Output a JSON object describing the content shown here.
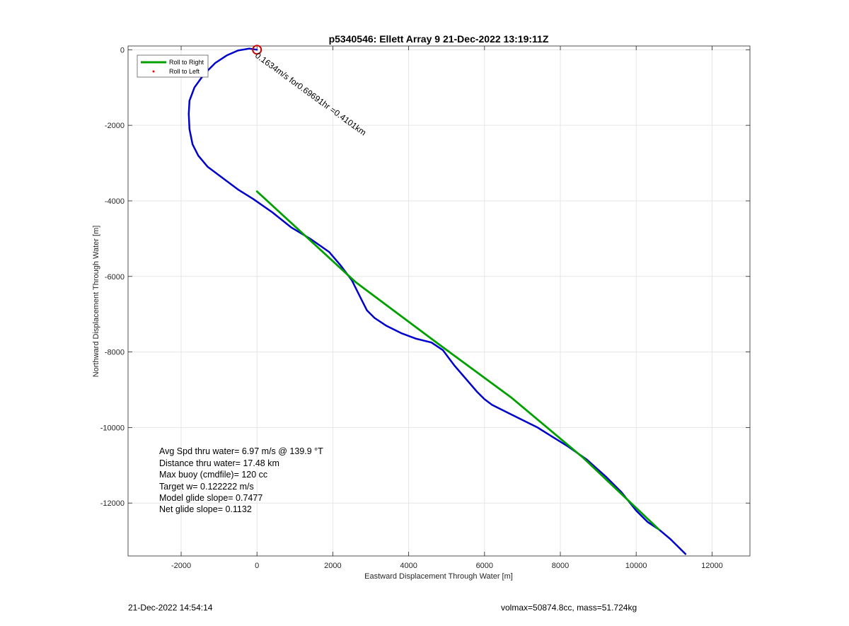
{
  "chart_data": {
    "type": "line",
    "title": "p5340546: Ellett Array 9 21-Dec-2022 13:19:11Z",
    "xlabel": "Eastward Displacement Through Water [m]",
    "ylabel": "Northward Displacement Through Water [m]",
    "xlim": [
      -3400,
      13000
    ],
    "ylim": [
      -13400,
      100
    ],
    "xticks": [
      -2000,
      0,
      2000,
      4000,
      6000,
      8000,
      10000,
      12000
    ],
    "xtick_labels": [
      "-2000",
      "0",
      "2000",
      "4000",
      "6000",
      "8000",
      "10000",
      "12000"
    ],
    "yticks": [
      0,
      -2000,
      -4000,
      -6000,
      -8000,
      -10000,
      -12000
    ],
    "ytick_labels": [
      "0",
      "-2000",
      "-4000",
      "-6000",
      "-8000",
      "-10000",
      "-12000"
    ],
    "grid": true,
    "legend": {
      "placement": "top-left",
      "entries": [
        {
          "label": "Roll to Right",
          "color": "#00a000",
          "marker": "line"
        },
        {
          "label": "Roll to Left",
          "color": "#ff0000",
          "marker": "dot"
        }
      ]
    },
    "series": [
      {
        "color": "#0000cc",
        "x": [
          0,
          -200,
          -500,
          -800,
          -1100,
          -1400,
          -1650,
          -1780,
          -1800,
          -1780,
          -1700,
          -1550,
          -1300,
          -900,
          -500,
          -100,
          400,
          900,
          1400,
          1900,
          2200,
          2500,
          2700,
          2900,
          3100,
          3400,
          3800,
          4200,
          4600,
          4900,
          5200,
          5500,
          5800,
          6000,
          6200,
          6600,
          7000,
          7400,
          7800,
          8200,
          8700,
          9200,
          9600,
          10000,
          10300,
          10600,
          10900,
          11100,
          11300
        ],
        "y": [
          0,
          30,
          -20,
          -150,
          -350,
          -650,
          -1000,
          -1350,
          -1700,
          -2100,
          -2500,
          -2800,
          -3100,
          -3400,
          -3700,
          -3950,
          -4300,
          -4700,
          -5000,
          -5350,
          -5700,
          -6100,
          -6500,
          -6900,
          -7100,
          -7300,
          -7500,
          -7650,
          -7750,
          -7950,
          -8350,
          -8700,
          -9050,
          -9250,
          -9400,
          -9600,
          -9800,
          -10000,
          -10250,
          -10500,
          -10850,
          -11300,
          -11700,
          -12200,
          -12500,
          -12700,
          -12950,
          -13150,
          -13350
        ]
      },
      {
        "color": "#00a000",
        "x": [
          0,
          2600,
          4800,
          6700,
          8600,
          10600
        ],
        "y": [
          -3750,
          -6150,
          -7800,
          -9200,
          -10800,
          -12700
        ]
      }
    ],
    "markers": [
      {
        "type": "circle",
        "x": 0,
        "y": 0,
        "color": "#cc0000"
      }
    ],
    "annotations": [
      {
        "text": "0.1634m/s for0.69691hr =0.4101km",
        "x": 0,
        "y": 0,
        "rotation_deg": 36
      }
    ],
    "stats_box": [
      "Avg Spd thru water=  6.97 m/s @ 139.9 °T",
      "Distance thru water= 17.48 km",
      "Max buoy (cmdfile)= 120 cc",
      "Target w= 0.122222 m/s",
      "Model glide slope= 0.7477",
      "Net glide slope= 0.1132"
    ]
  },
  "footer": {
    "left": "21-Dec-2022 14:54:14",
    "right": "volmax=50874.8cc, mass=51.724kg"
  }
}
